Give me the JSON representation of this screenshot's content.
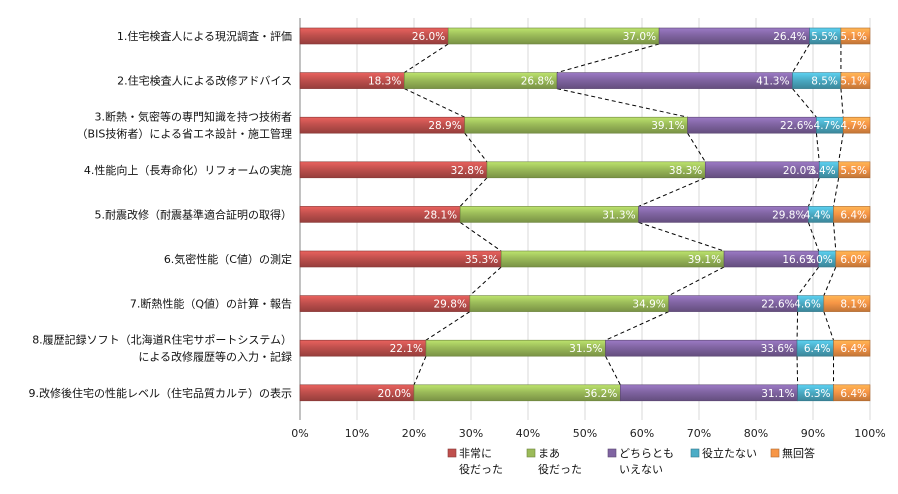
{
  "chart_data": {
    "type": "bar",
    "orientation": "horizontal",
    "stacked": true,
    "percent": true,
    "categories": [
      [
        "1.住宅検査人による現況調査・評価"
      ],
      [
        "2.住宅検査人による改修アドバイス"
      ],
      [
        "3.断熱・気密等の専門知識を持つ技術者",
        "（BIS技術者）による省エネ設計・施工管理"
      ],
      [
        "4.性能向上（長寿命化）リフォームの実施"
      ],
      [
        "5.耐震改修（耐震基準適合証明の取得）"
      ],
      [
        "6.気密性能（C値）の測定"
      ],
      [
        "7.断熱性能（Q値）の計算・報告"
      ],
      [
        "8.履歴記録ソフト（北海道R住宅サポートシステム）",
        "による改修履歴等の入力・記録"
      ],
      [
        "9.改修後住宅の性能レベル（住宅品質カルテ）の表示"
      ]
    ],
    "series": [
      {
        "name": "非常に\n役だった",
        "color": "#c0504d",
        "values": [
          26.0,
          18.3,
          28.9,
          32.8,
          28.1,
          35.3,
          29.8,
          22.1,
          20.0
        ],
        "labels": [
          "26.0%",
          "18.3%",
          "28.9%",
          "32.8%",
          "28.1%",
          "35.3%",
          "29.8%",
          "22.1%",
          "20.0%"
        ]
      },
      {
        "name": "まあ\n役だった",
        "color": "#9bbb59",
        "values": [
          37.0,
          26.8,
          39.1,
          38.3,
          31.3,
          39.1,
          34.9,
          31.5,
          36.2
        ],
        "labels": [
          "37.0%",
          "26.8%",
          "39.1%",
          "38.3%",
          "31.3%",
          "39.1%",
          "34.9%",
          "31.5%",
          "36.2%"
        ]
      },
      {
        "name": "どちらとも\nいえない",
        "color": "#8064a2",
        "values": [
          26.4,
          41.3,
          22.6,
          20.0,
          29.8,
          16.6,
          22.6,
          33.6,
          31.1
        ],
        "labels": [
          "26.4%",
          "41.3%",
          "22.6%",
          "20.0%",
          "29.8%",
          "16.6%",
          "22.6%",
          "33.6%",
          "31.1%"
        ]
      },
      {
        "name": "役立たない",
        "color": "#4bacc6",
        "values": [
          5.5,
          8.5,
          4.7,
          3.4,
          4.4,
          3.0,
          4.6,
          6.4,
          6.3
        ],
        "labels": [
          "5.5%",
          "8.5%",
          "4.7%",
          "3.4%",
          "4.4%",
          "3.0%",
          "4.6%",
          "6.4%",
          "6.3%"
        ]
      },
      {
        "name": "無回答",
        "color": "#f79646",
        "values": [
          5.1,
          5.1,
          4.7,
          5.5,
          6.4,
          6.0,
          8.1,
          6.4,
          6.4
        ],
        "labels": [
          "5.1%",
          "5.1%",
          "4.7%",
          "5.5%",
          "6.4%",
          "6.0%",
          "8.1%",
          "6.4%",
          "6.4%"
        ]
      }
    ],
    "xlim": [
      0,
      100
    ],
    "xticks": [
      "0%",
      "10%",
      "20%",
      "30%",
      "40%",
      "50%",
      "60%",
      "70%",
      "80%",
      "90%",
      "100%"
    ],
    "grid": true,
    "series_lines": "dashed",
    "legend": "bottom"
  }
}
